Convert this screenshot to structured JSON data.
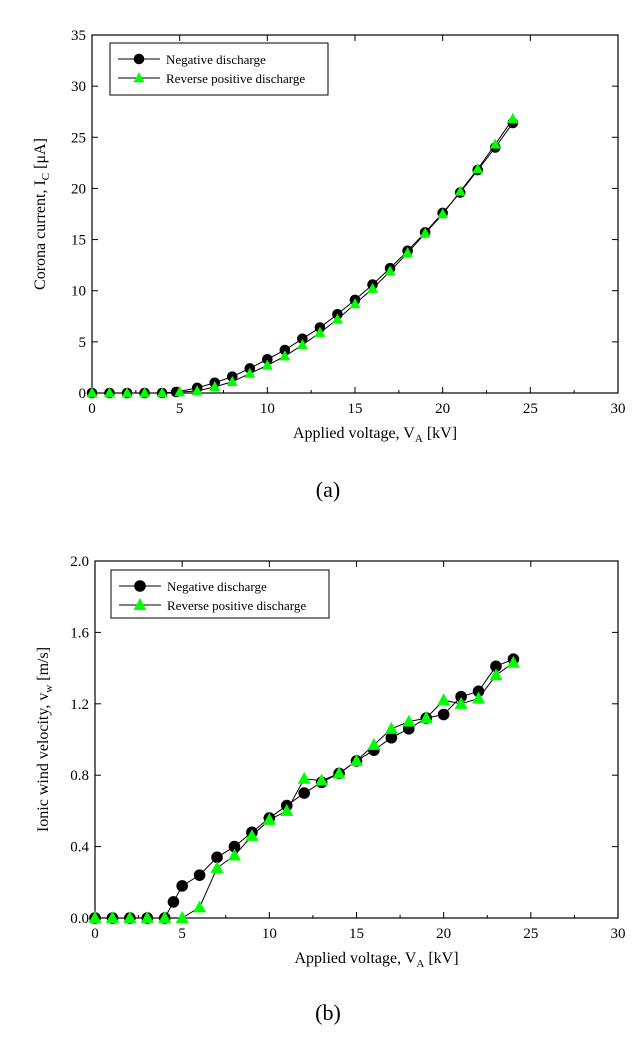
{
  "chart_data": [
    {
      "type": "line",
      "caption": "(a)",
      "xlabel": {
        "main": "Applied voltage, V",
        "sub": "A",
        "unit": " [kV]"
      },
      "ylabel": {
        "main": "Corona current, I",
        "sub": "C",
        "unit": " [μA]"
      },
      "xlim": [
        0,
        30
      ],
      "ylim": [
        0,
        35
      ],
      "xticks": [
        "0",
        "5",
        "10",
        "15",
        "20",
        "25",
        "30"
      ],
      "yticks": [
        "0",
        "5",
        "10",
        "15",
        "20",
        "25",
        "30",
        "35"
      ],
      "grid": false,
      "legend_position": "top-left",
      "series": [
        {
          "name": "Negative discharge",
          "marker": "circle",
          "color": "#000000",
          "x": [
            0,
            1,
            2,
            3,
            4,
            4.8,
            6,
            7,
            8,
            9,
            10,
            11,
            12,
            13,
            14,
            15,
            16,
            17,
            18,
            19,
            20,
            21,
            22,
            23,
            24
          ],
          "y": [
            0,
            0,
            0,
            0,
            0,
            0.1,
            0.5,
            1.0,
            1.6,
            2.4,
            3.3,
            4.2,
            5.3,
            6.4,
            7.7,
            9.1,
            10.6,
            12.2,
            13.9,
            15.7,
            17.6,
            19.6,
            21.8,
            24.0,
            26.4
          ]
        },
        {
          "name": "Reverse positive discharge",
          "marker": "triangle",
          "color": "#00ff00",
          "x": [
            0,
            1,
            2,
            3,
            4,
            5,
            6,
            7,
            8,
            9,
            10,
            11,
            12,
            13,
            14,
            15,
            16,
            17,
            18,
            19,
            20,
            21,
            22,
            23,
            24
          ],
          "y": [
            0,
            0,
            0,
            0,
            0,
            0.1,
            0.2,
            0.6,
            1.1,
            1.9,
            2.7,
            3.6,
            4.7,
            5.9,
            7.2,
            8.7,
            10.2,
            11.9,
            13.7,
            15.6,
            17.5,
            19.7,
            21.9,
            24.3,
            26.8
          ]
        }
      ]
    },
    {
      "type": "line",
      "caption": "(b)",
      "xlabel": {
        "main": "Applied voltage, V",
        "sub": "A",
        "unit": " [kV]"
      },
      "ylabel": {
        "main": "Ionic wind velocity, v",
        "sub": "w",
        "unit": " [m/s]"
      },
      "xlim": [
        0,
        30
      ],
      "ylim": [
        0,
        2.0
      ],
      "xticks": [
        "0",
        "5",
        "10",
        "15",
        "20",
        "25",
        "30"
      ],
      "yticks": [
        "0.0",
        "0.4",
        "0.8",
        "1.2",
        "1.6",
        "2.0"
      ],
      "grid": false,
      "legend_position": "top-left",
      "series": [
        {
          "name": "Negative discharge",
          "marker": "circle",
          "color": "#000000",
          "x": [
            0,
            1,
            2,
            3,
            4,
            4.5,
            5,
            6,
            7,
            8,
            9,
            10,
            11,
            12,
            13,
            14,
            15,
            16,
            17,
            18,
            19,
            20,
            21,
            22,
            23,
            24
          ],
          "y": [
            0,
            0,
            0,
            0,
            0,
            0.09,
            0.18,
            0.24,
            0.34,
            0.4,
            0.48,
            0.56,
            0.63,
            0.7,
            0.76,
            0.81,
            0.88,
            0.94,
            1.01,
            1.06,
            1.12,
            1.14,
            1.24,
            1.27,
            1.41,
            1.45
          ]
        },
        {
          "name": "Reverse positive discharge",
          "marker": "triangle",
          "color": "#00ff00",
          "x": [
            0,
            1,
            2,
            3,
            4,
            5,
            6,
            7,
            8,
            9,
            10,
            11,
            12,
            13,
            14,
            15,
            16,
            17,
            18,
            19,
            20,
            21,
            22,
            23,
            24
          ],
          "y": [
            0,
            0,
            0,
            0,
            0,
            0,
            0.06,
            0.28,
            0.35,
            0.46,
            0.55,
            0.6,
            0.78,
            0.77,
            0.81,
            0.88,
            0.97,
            1.06,
            1.1,
            1.12,
            1.22,
            1.2,
            1.23,
            1.36,
            1.43
          ]
        }
      ]
    }
  ]
}
